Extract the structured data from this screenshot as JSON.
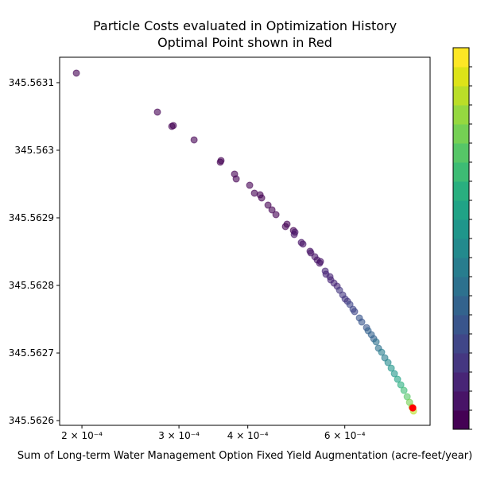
{
  "chart_data": {
    "type": "scatter",
    "title": "Particle Costs evaluated in Optimization History",
    "subtitle": "Optimal Point shown in Red",
    "x_label": "Sum of Long-term Water Management Option Fixed Yield Augmentation (acre-feet/year)",
    "x_scale": "log",
    "xlim": [
      0.0001822,
      0.000857
    ],
    "xticks": [
      {
        "value": 0.0002,
        "label": "2 × 10⁻⁴"
      },
      {
        "value": 0.0003,
        "label": "3 × 10⁻⁴"
      },
      {
        "value": 0.0004,
        "label": "4 × 10⁻⁴"
      },
      {
        "value": 0.0006,
        "label": "6 × 10⁻⁴"
      }
    ],
    "ylim": [
      345.562593,
      345.5631376
    ],
    "yticks": [
      345.5626,
      345.5627,
      345.5628,
      345.5629,
      345.563,
      345.5631
    ],
    "points": {
      "x": [
        0.0001954,
        0.0002742,
        0.0002912,
        0.000293,
        0.0003196,
        0.0003566,
        0.0003577,
        0.0003785,
        0.0003811,
        0.0004032,
        0.0004113,
        0.0004211,
        0.0004239,
        0.0004353,
        0.0004426,
        0.00045,
        0.0004682,
        0.0004713,
        0.0004841,
        0.0004857,
        0.0004872,
        0.0005003,
        0.0005037,
        0.0005189,
        0.0005206,
        0.0005294,
        0.0005347,
        0.0005402,
        0.000542,
        0.0005529,
        0.0005547,
        0.0005639,
        0.0005658,
        0.0005734,
        0.0005811,
        0.000587,
        0.0005948,
        0.0006008,
        0.0006068,
        0.0006129,
        0.000621,
        0.0006251,
        0.0006377,
        0.0006441,
        0.0006571,
        0.0006615,
        0.0006704,
        0.0006771,
        0.0006839,
        0.0006907,
        0.0006998,
        0.0007092,
        0.0007188,
        0.0007285,
        0.0007382,
        0.0007481,
        0.0007582,
        0.0007684,
        0.0007787,
        0.0007865,
        0.0007943,
        0.0007996
      ],
      "y": [
        345.5631141,
        345.5630565,
        345.5630353,
        345.5630365,
        345.5630153,
        345.5629824,
        345.5629847,
        345.5629647,
        345.5629576,
        345.5629482,
        345.5629365,
        345.5629341,
        345.5629294,
        345.5629188,
        345.5629118,
        345.5629047,
        345.5628871,
        345.5628906,
        345.5628812,
        345.5628753,
        345.5628788,
        345.5628635,
        345.5628612,
        345.5628506,
        345.5628482,
        345.5628424,
        345.5628376,
        345.5628329,
        345.5628353,
        345.5628212,
        345.5628165,
        345.5628129,
        345.5628082,
        345.5628035,
        345.5627988,
        345.5627929,
        345.5627859,
        345.56278,
        345.5627765,
        345.5627718,
        345.5627647,
        345.5627612,
        345.5627518,
        345.5627459,
        345.5627376,
        345.5627329,
        345.5627271,
        345.5627212,
        345.5627165,
        345.5627071,
        345.5627012,
        345.5626929,
        345.5626859,
        345.5626776,
        345.5626694,
        345.5626612,
        345.5626529,
        345.5626447,
        345.5626353,
        345.5626271,
        345.56262,
        345.5626141
      ]
    },
    "optimal": {
      "x": 0.000797,
      "y": 345.5626188,
      "color": "#ff0000"
    },
    "colorbar_colors": [
      "#440154",
      "#481467",
      "#482576",
      "#453781",
      "#404688",
      "#39558c",
      "#33638d",
      "#2d718e",
      "#287d8e",
      "#238a8d",
      "#1f968b",
      "#20a386",
      "#29af7f",
      "#3dbc74",
      "#56c667",
      "#75d054",
      "#95d840",
      "#bade28",
      "#dde318",
      "#fde725"
    ]
  }
}
